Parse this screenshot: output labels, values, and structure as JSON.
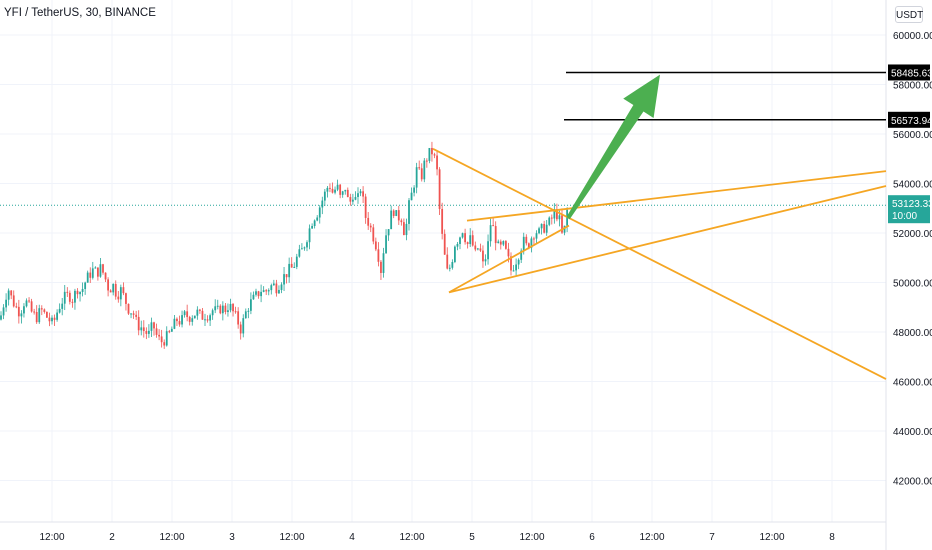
{
  "header": {
    "title": "YFI / TetherUS, 30, BINANCE",
    "currency": "USDT"
  },
  "colors": {
    "up": "#26a69a",
    "down": "#ef5350",
    "pattern": "#f5a623",
    "arrow": "#4caf50",
    "grid": "#f0f3fa",
    "level": "#000000",
    "last_price_bg": "#26a69a"
  },
  "chart_data": {
    "type": "candlestick",
    "symbol": "YFI / TetherUS",
    "interval": "30",
    "exchange": "BINANCE",
    "ylim": [
      40000,
      62000
    ],
    "y_ticks": [
      "42000.00",
      "44000.00",
      "46000.00",
      "48000.00",
      "50000.00",
      "52000.00",
      "54000.00",
      "56000.00",
      "58000.00",
      "60000.00"
    ],
    "x_ticks": [
      "12:00",
      "2",
      "12:00",
      "3",
      "12:00",
      "4",
      "12:00",
      "5",
      "12:00",
      "6",
      "12:00",
      "7",
      "12:00",
      "8"
    ],
    "last_price": "53123.33",
    "last_price_timer": "10:00",
    "levels": [
      {
        "value": 58485.63,
        "label": "58485.63"
      },
      {
        "value": 56573.94,
        "label": "56573.94"
      }
    ],
    "price_path": [
      [
        0,
        48500
      ],
      [
        4,
        49200
      ],
      [
        8,
        49800
      ],
      [
        12,
        49300
      ],
      [
        16,
        49000
      ],
      [
        20,
        48800
      ],
      [
        25,
        49300
      ],
      [
        29,
        49000
      ],
      [
        33,
        48700
      ],
      [
        37,
        48600
      ],
      [
        41,
        48900
      ],
      [
        45,
        48700
      ],
      [
        49,
        48500
      ],
      [
        53,
        48300
      ],
      [
        57,
        48800
      ],
      [
        61,
        49200
      ],
      [
        65,
        49400
      ],
      [
        69,
        49500
      ],
      [
        73,
        49300
      ],
      [
        77,
        49800
      ],
      [
        81,
        49600
      ],
      [
        85,
        50000
      ],
      [
        89,
        50300
      ],
      [
        93,
        50500
      ],
      [
        97,
        50400
      ],
      [
        101,
        50600
      ],
      [
        105,
        50200
      ],
      [
        109,
        49700
      ],
      [
        113,
        49900
      ],
      [
        117,
        49500
      ],
      [
        121,
        49700
      ],
      [
        125,
        49300
      ],
      [
        129,
        48900
      ],
      [
        133,
        48800
      ],
      [
        137,
        48300
      ],
      [
        141,
        48200
      ],
      [
        145,
        48000
      ],
      [
        149,
        47900
      ],
      [
        153,
        48300
      ],
      [
        157,
        47800
      ],
      [
        161,
        47600
      ],
      [
        165,
        47700
      ],
      [
        169,
        47900
      ],
      [
        173,
        48200
      ],
      [
        177,
        48500
      ],
      [
        181,
        48400
      ],
      [
        185,
        48700
      ],
      [
        189,
        48600
      ],
      [
        193,
        48700
      ],
      [
        197,
        48800
      ],
      [
        201,
        48600
      ],
      [
        205,
        48700
      ],
      [
        209,
        48700
      ],
      [
        213,
        48900
      ],
      [
        217,
        48800
      ],
      [
        221,
        49000
      ],
      [
        225,
        48900
      ],
      [
        229,
        49100
      ],
      [
        233,
        48800
      ],
      [
        237,
        48500
      ],
      [
        241,
        48100
      ],
      [
        245,
        48700
      ],
      [
        249,
        49100
      ],
      [
        253,
        49300
      ],
      [
        257,
        49500
      ],
      [
        261,
        49700
      ],
      [
        265,
        49600
      ],
      [
        269,
        49800
      ],
      [
        273,
        49900
      ],
      [
        277,
        49800
      ],
      [
        281,
        50100
      ],
      [
        285,
        50300
      ],
      [
        289,
        50500
      ],
      [
        293,
        50600
      ],
      [
        297,
        51000
      ],
      [
        301,
        51200
      ],
      [
        305,
        51600
      ],
      [
        309,
        52100
      ],
      [
        313,
        52600
      ],
      [
        317,
        52800
      ],
      [
        321,
        53200
      ],
      [
        325,
        53600
      ],
      [
        329,
        54000
      ],
      [
        333,
        53600
      ],
      [
        337,
        53900
      ],
      [
        341,
        53300
      ],
      [
        345,
        53900
      ],
      [
        349,
        53100
      ],
      [
        353,
        53600
      ],
      [
        357,
        53200
      ],
      [
        361,
        53900
      ],
      [
        365,
        52700
      ],
      [
        369,
        52400
      ],
      [
        373,
        51900
      ],
      [
        377,
        51400
      ],
      [
        381,
        50500
      ],
      [
        385,
        51800
      ],
      [
        389,
        52400
      ],
      [
        393,
        53000
      ],
      [
        397,
        52600
      ],
      [
        401,
        52700
      ],
      [
        405,
        51900
      ],
      [
        409,
        53100
      ],
      [
        413,
        53800
      ],
      [
        417,
        54600
      ],
      [
        421,
        54200
      ],
      [
        425,
        54900
      ],
      [
        429,
        55200
      ],
      [
        433,
        55300
      ],
      [
        437,
        54500
      ],
      [
        440,
        52700
      ],
      [
        443,
        51500
      ],
      [
        447,
        50400
      ],
      [
        451,
        50700
      ],
      [
        455,
        51600
      ],
      [
        459,
        51800
      ],
      [
        463,
        52200
      ],
      [
        467,
        51500
      ],
      [
        471,
        51800
      ],
      [
        475,
        51100
      ],
      [
        479,
        51500
      ],
      [
        483,
        50700
      ],
      [
        487,
        51200
      ],
      [
        491,
        52500
      ],
      [
        495,
        51900
      ],
      [
        499,
        51300
      ],
      [
        503,
        51500
      ],
      [
        507,
        51100
      ],
      [
        511,
        50500
      ],
      [
        515,
        50800
      ],
      [
        519,
        51200
      ],
      [
        523,
        51700
      ],
      [
        527,
        51400
      ],
      [
        531,
        51800
      ],
      [
        535,
        52100
      ],
      [
        539,
        52000
      ],
      [
        543,
        52200
      ],
      [
        547,
        52300
      ],
      [
        551,
        52500
      ],
      [
        555,
        52900
      ],
      [
        559,
        52600
      ],
      [
        563,
        51700
      ],
      [
        567,
        52900
      ]
    ],
    "drawings": {
      "triangle_upper_left": [
        [
          433,
          55400
        ],
        [
          630,
          51300
        ]
      ],
      "triangle_descending_line": [
        [
          433,
          55400
        ],
        [
          886,
          46100
        ]
      ],
      "triangle_lower_line": [
        [
          449,
          49600
        ],
        [
          886,
          53900
        ]
      ],
      "wedge_top_line": [
        [
          467,
          52500
        ],
        [
          886,
          54500
        ]
      ],
      "wedge_lower_line": [
        [
          449,
          49600
        ],
        [
          569,
          52300
        ]
      ],
      "arrow": {
        "from": [
          568,
          52600
        ],
        "to": [
          660,
          58400
        ]
      }
    }
  }
}
